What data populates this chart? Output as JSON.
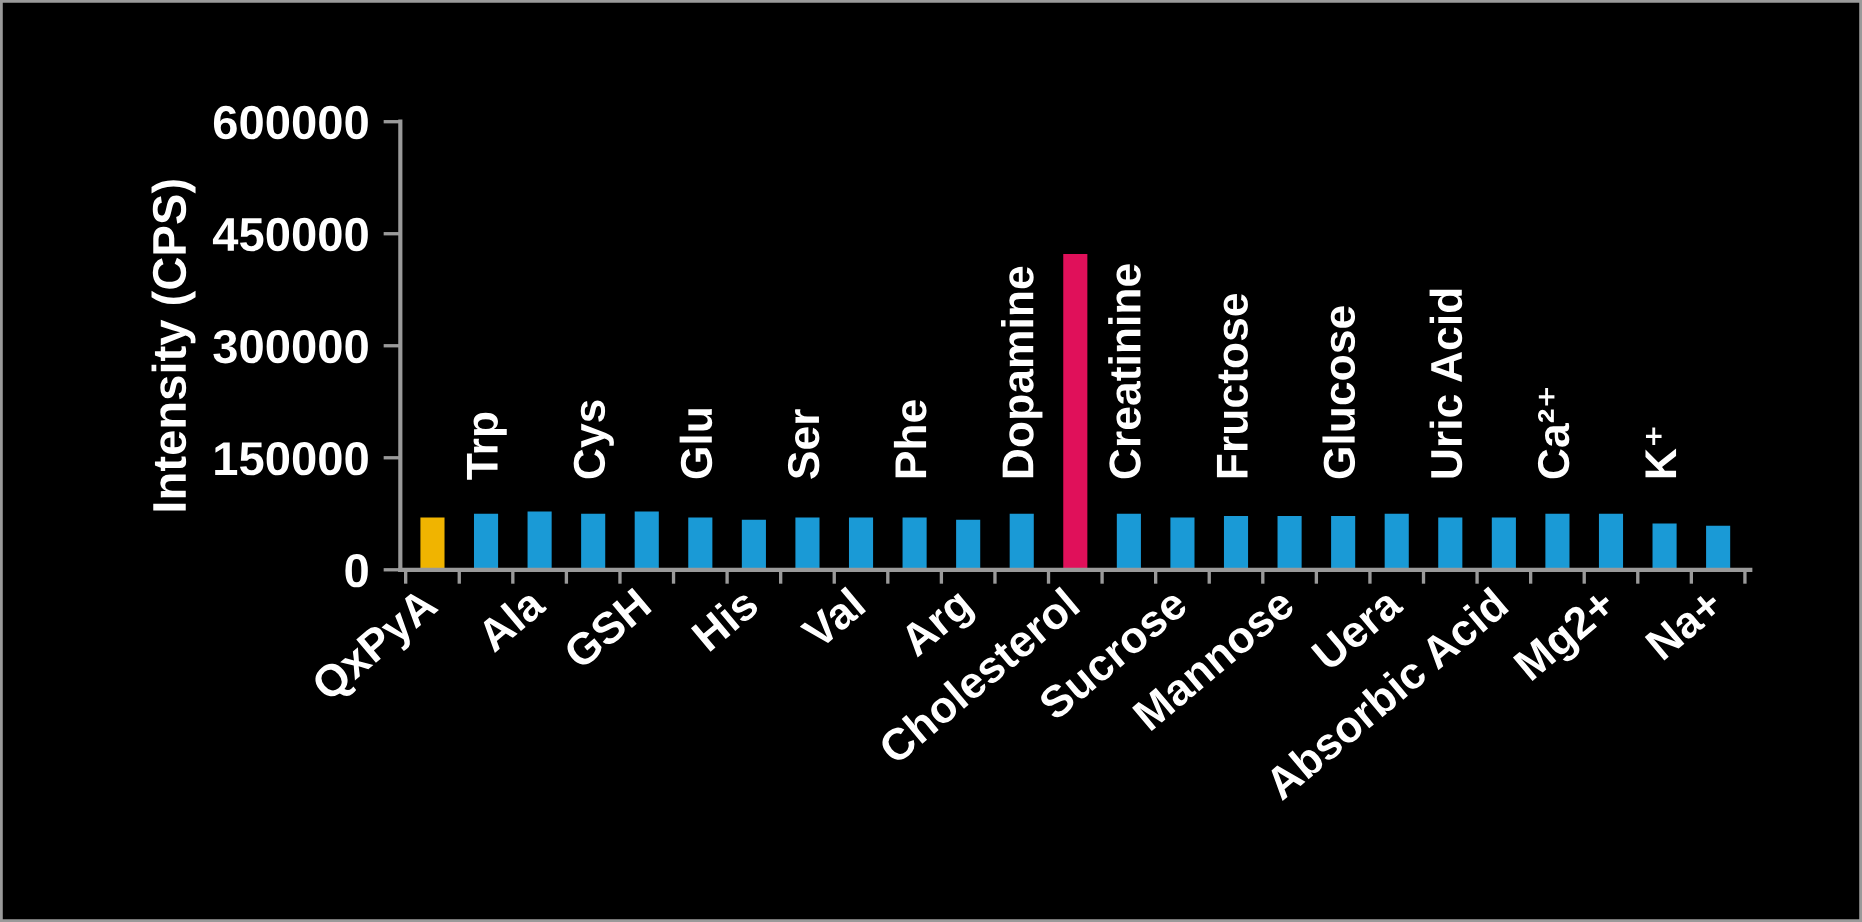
{
  "chart_data": {
    "type": "bar",
    "ylabel": "Intensity (CPS)",
    "categories": [
      "QxPyA",
      "Trp",
      "Ala",
      "Cys",
      "GSH",
      "Glu",
      "His",
      "Ser",
      "Val",
      "Phe",
      "Arg",
      "Dopamine",
      "Cholesterol",
      "Creatinine",
      "Sucrose",
      "Fructose",
      "Mannose",
      "Glucose",
      "Uera",
      "Uric Acid",
      "Absorbic Acid",
      "Ca²⁺",
      "Mg2+",
      "K⁺",
      "Na+"
    ],
    "values": [
      70000,
      75000,
      78000,
      75000,
      78000,
      70000,
      67000,
      70000,
      70000,
      70000,
      67000,
      75000,
      423000,
      75000,
      70000,
      72000,
      72000,
      72000,
      75000,
      70000,
      70000,
      75000,
      75000,
      62000,
      59000
    ],
    "colors": [
      "#f0b400",
      "#1a9ad6",
      "#1a9ad6",
      "#1a9ad6",
      "#1a9ad6",
      "#1a9ad6",
      "#1a9ad6",
      "#1a9ad6",
      "#1a9ad6",
      "#1a9ad6",
      "#1a9ad6",
      "#1a9ad6",
      "#e0105a",
      "#1a9ad6",
      "#1a9ad6",
      "#1a9ad6",
      "#1a9ad6",
      "#1a9ad6",
      "#1a9ad6",
      "#1a9ad6",
      "#1a9ad6",
      "#1a9ad6",
      "#1a9ad6",
      "#1a9ad6",
      "#1a9ad6"
    ],
    "ylim": [
      0,
      600000
    ],
    "yticks": [
      0,
      150000,
      300000,
      450000,
      600000
    ]
  }
}
